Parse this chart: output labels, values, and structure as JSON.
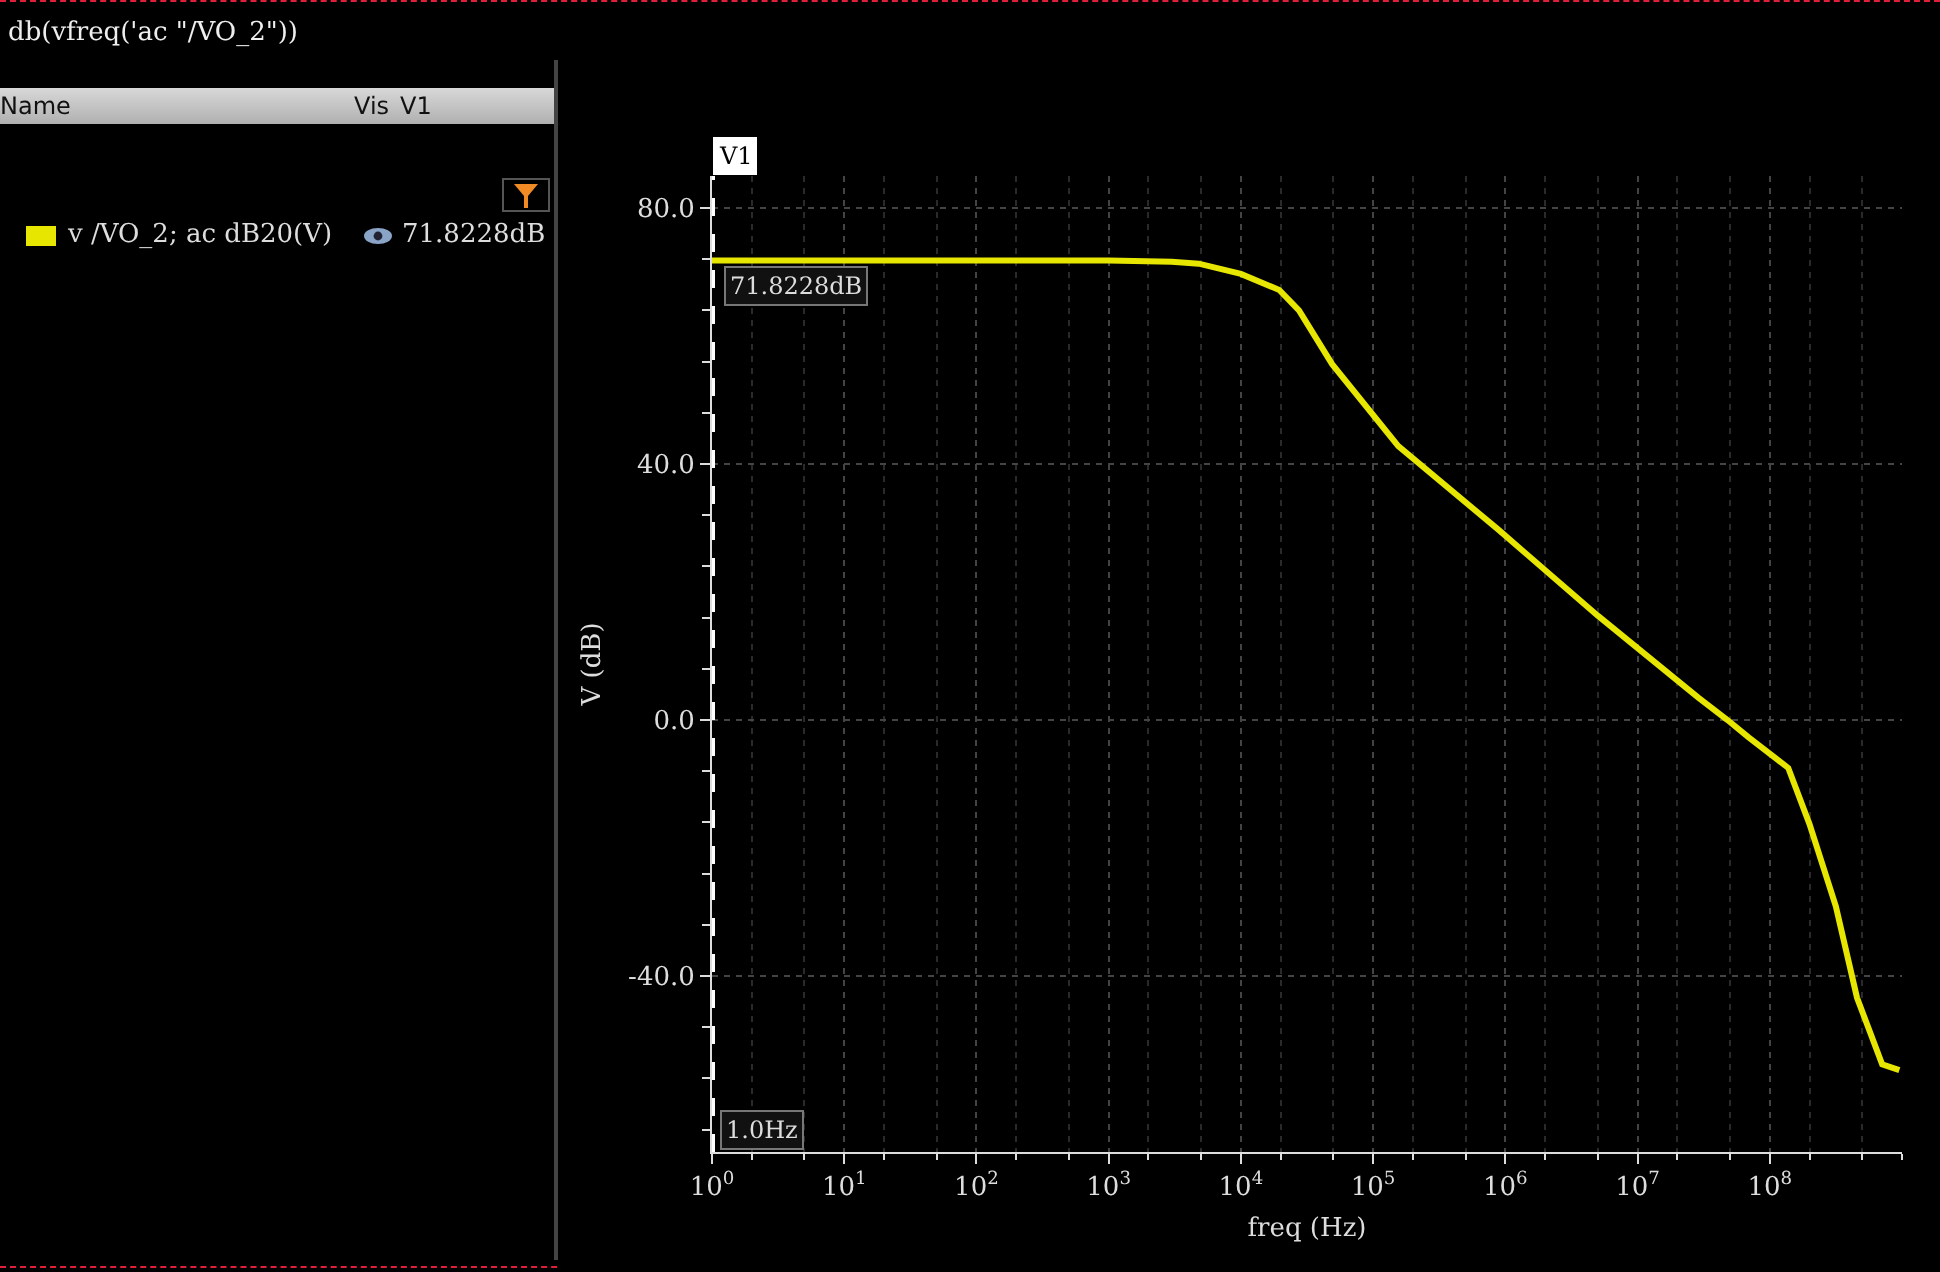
{
  "chart_data": {
    "type": "line",
    "title": "db(vfreq('ac \"/VO_2\"))",
    "xlabel": "freq (Hz)",
    "ylabel": "V (dB)",
    "log": "x",
    "series": [
      {
        "name": "v /VO_2; ac dB20(V)",
        "color": "#e6e600",
        "x": [
          1,
          10,
          100,
          1000,
          3000,
          4800,
          10000,
          19500,
          27500,
          49000,
          155000,
          890000,
          5000000,
          28800000,
          47900000,
          69200000,
          138000000,
          200000000,
          316000000,
          457000000,
          708000000,
          955000000
        ],
        "values": [
          71.8,
          71.8,
          71.8,
          71.8,
          71.6,
          71.3,
          69.7,
          67.2,
          64,
          55.6,
          42.8,
          29.7,
          16.3,
          3.5,
          0,
          -2.7,
          -7.5,
          -16.3,
          -29.1,
          -43.4,
          -53.8,
          -54.7
        ]
      }
    ],
    "xlim": [
      1,
      1000000000
    ],
    "ylim": [
      -67.5,
      85
    ],
    "xticks": [
      {
        "value": 1,
        "label": "10$^{0}$"
      },
      {
        "value": 10,
        "label": "10$^{1}$"
      },
      {
        "value": 100,
        "label": "10$^{2}$"
      },
      {
        "value": 1000,
        "label": "10$^{3}$"
      },
      {
        "value": 10000,
        "label": "10$^{4}$"
      },
      {
        "value": 100000,
        "label": "10$^{5}$"
      },
      {
        "value": 1000000,
        "label": "10$^{6}$"
      },
      {
        "value": 10000000,
        "label": "10$^{7}$"
      },
      {
        "value": 100000000,
        "label": "10$^{8}$"
      }
    ],
    "yticks": [
      {
        "value": -40,
        "label": "-40.0"
      },
      {
        "value": 0,
        "label": "0.0"
      },
      {
        "value": 40,
        "label": "40.0"
      },
      {
        "value": 80,
        "label": "80.0"
      }
    ],
    "ref_lines": [
      {
        "axis": "x",
        "value": 1,
        "label": "V1",
        "color": "#ffffff",
        "line_style": "dashed"
      }
    ],
    "annotations": [
      "Name",
      "Vis",
      "V1",
      "71.8228dB",
      {
        "text": "71.8228dB",
        "x": 1,
        "y": 71.8228
      },
      {
        "text": "1.0Hz",
        "x": 1,
        "y": -64
      }
    ],
    "grid": true,
    "legend": "left",
    "marker": "none",
    "line_style": "solid"
  }
}
